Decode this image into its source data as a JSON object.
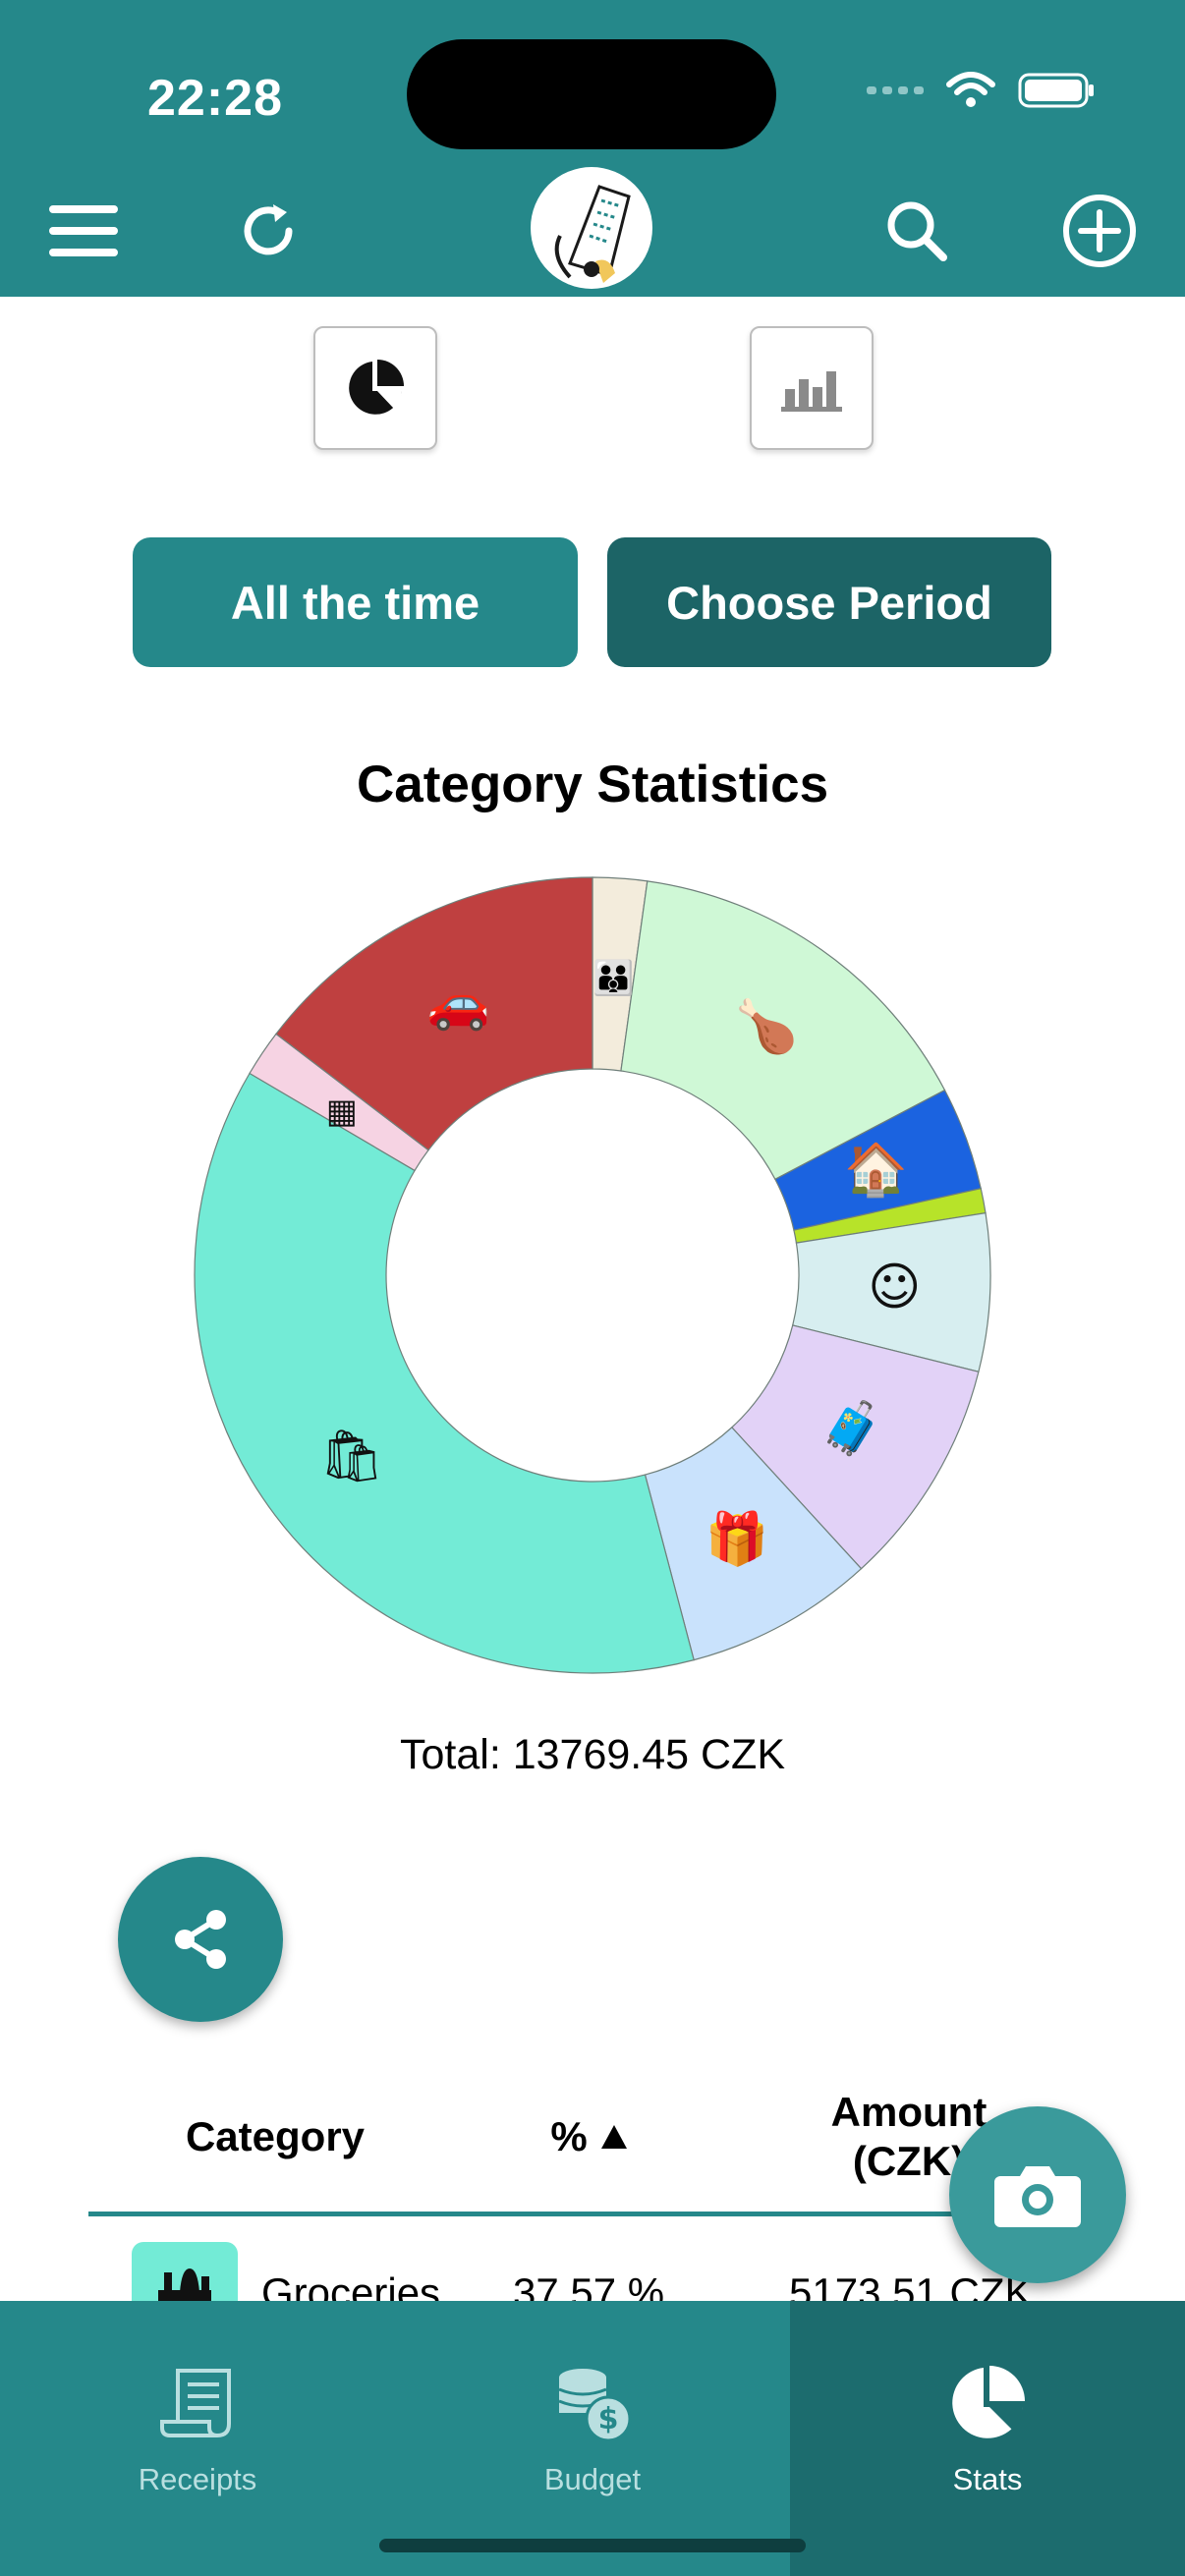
{
  "status_bar": {
    "time": "22:28"
  },
  "header": {
    "menu_icon": "hamburger-menu-icon",
    "refresh_icon": "refresh-icon",
    "logo_icon": "receipt-logo",
    "search_icon": "search-icon",
    "add_icon": "plus-circle-icon"
  },
  "chart_switch": {
    "pie_icon": "pie-chart-icon",
    "bar_icon": "bar-chart-icon",
    "selected": "pie"
  },
  "period": {
    "all_time_label": "All the time",
    "choose_label": "Choose Period"
  },
  "stats": {
    "title": "Category Statistics",
    "total": "Total: 13769.45 CZK"
  },
  "chart_data": {
    "type": "pie",
    "title": "Category Statistics",
    "donut": true,
    "total_text": "Total: 13769.45 CZK",
    "slices": [
      {
        "icon": "family-icon",
        "percent": 2.2,
        "color": "#f3ecdc"
      },
      {
        "icon": "food-icon",
        "percent": 15.1,
        "color": "#cff8d6"
      },
      {
        "icon": "housing-icon",
        "percent": 4.2,
        "color": "#1b63e0"
      },
      {
        "icon": "",
        "percent": 1.0,
        "color": "#b7e329"
      },
      {
        "icon": "beauty-icon",
        "percent": 6.4,
        "color": "#d7eef0"
      },
      {
        "icon": "travel-icon",
        "percent": 9.3,
        "color": "#e2d2f7"
      },
      {
        "icon": "gift-icon",
        "percent": 7.7,
        "color": "#c9e2fc"
      },
      {
        "icon": "grocery-icon",
        "percent": 37.57,
        "color": "#73ebd6"
      },
      {
        "icon": "other-icon",
        "percent": 1.9,
        "color": "#f6d3e3"
      },
      {
        "icon": "car-icon",
        "percent": 14.63,
        "color": "#bf4040"
      }
    ]
  },
  "share_icon": "share-icon",
  "table": {
    "headers": {
      "category": "Category",
      "percent": "%",
      "amount_line1": "Amount",
      "amount_line2": "(CZK)"
    },
    "sort_icon": "sort-up-icon",
    "rows": [
      {
        "icon": "grocery-icon",
        "category": "Groceries",
        "percent": "37.57 %",
        "amount": "5173.51 CZK"
      }
    ]
  },
  "camera_icon": "camera-icon",
  "tabs": [
    {
      "label": "Receipts",
      "icon": "receipt-icon",
      "active": false
    },
    {
      "label": "Budget",
      "icon": "coins-icon",
      "active": false
    },
    {
      "label": "Stats",
      "icon": "pie-chart-icon",
      "active": true
    }
  ]
}
